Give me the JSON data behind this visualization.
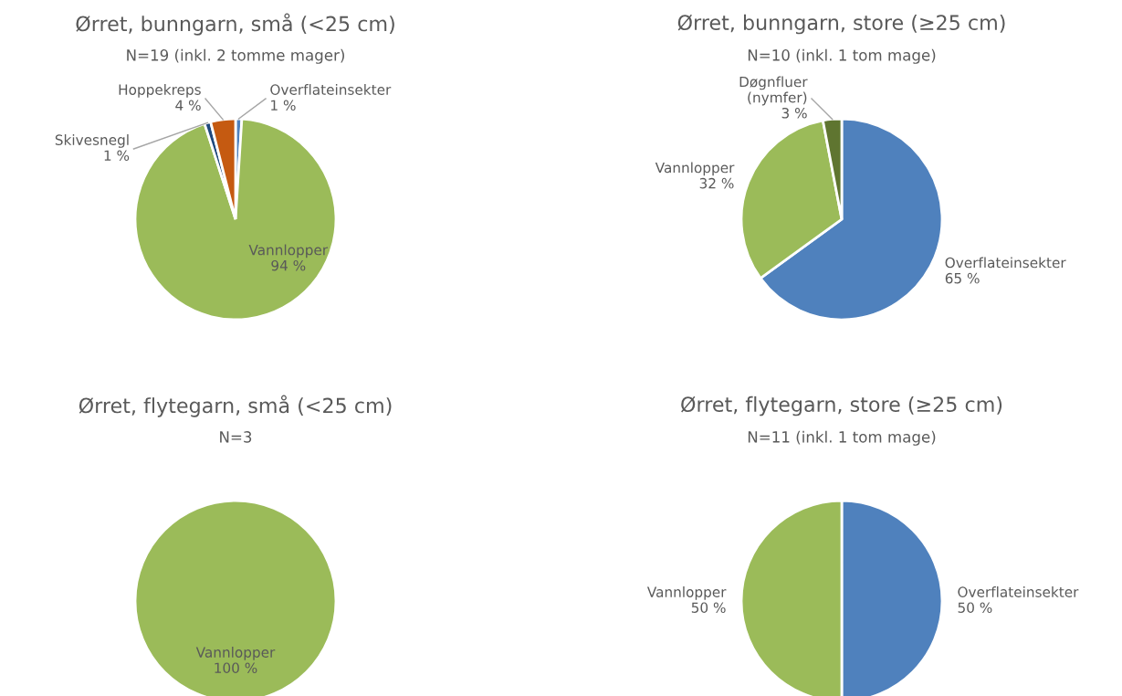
{
  "chart_data": [
    {
      "type": "pie",
      "title": "Ørret, bunngarn, små (<25 cm)",
      "subtitle": "N=19 (inkl. 2 tomme mager)",
      "categories": [
        "Overflateinsekter",
        "Vannlopper",
        "Skivesnegl",
        "Hoppekreps"
      ],
      "values": [
        1,
        94,
        1,
        4
      ],
      "colors": [
        "#4f81bd",
        "#9bbb59",
        "#1f497d",
        "#c55a11"
      ],
      "value_labels": [
        "1 %",
        "94 %",
        "1 %",
        "4 %"
      ]
    },
    {
      "type": "pie",
      "title": "Ørret, bunngarn, store (≥25 cm)",
      "subtitle": "N=10 (inkl. 1 tom mage)",
      "categories": [
        "Overflateinsekter",
        "Vannlopper",
        "Døgnfluer\n(nymfer)"
      ],
      "values": [
        65,
        32,
        3
      ],
      "colors": [
        "#4f81bd",
        "#9bbb59",
        "#5f7530"
      ],
      "value_labels": [
        "65 %",
        "32 %",
        "3 %"
      ]
    },
    {
      "type": "pie",
      "title": "Ørret, flytegarn, små (<25 cm)",
      "subtitle": "N=3",
      "categories": [
        "Vannlopper"
      ],
      "values": [
        100
      ],
      "colors": [
        "#9bbb59"
      ],
      "value_labels": [
        "100 %"
      ]
    },
    {
      "type": "pie",
      "title": "Ørret, flytegarn, store (≥25 cm)",
      "subtitle": "N=11 (inkl. 1 tom mage)",
      "categories": [
        "Overflateinsekter",
        "Vannlopper"
      ],
      "values": [
        50,
        50
      ],
      "colors": [
        "#4f81bd",
        "#9bbb59"
      ],
      "value_labels": [
        "50 %",
        "50 %"
      ]
    }
  ]
}
